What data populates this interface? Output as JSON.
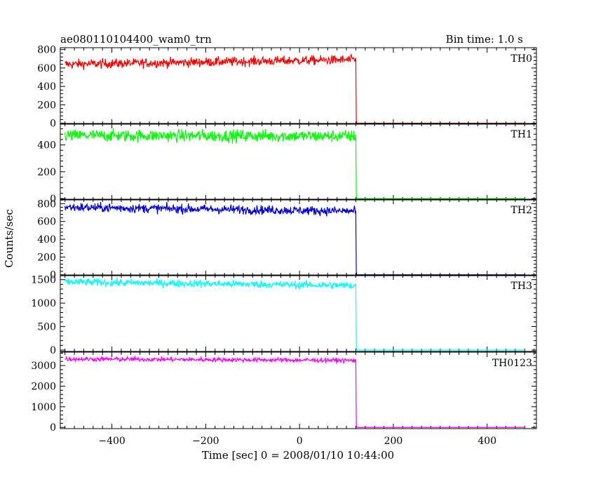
{
  "chart_data": {
    "type": "line",
    "title": "ae080110104400_wam0_trn",
    "subtitle": "Bin time: 1.0 s",
    "xlabel": "Time [sec] 0 = 2008/01/10 10:44:00",
    "ylabel": "Counts/sec",
    "xlim": [
      -510,
      505
    ],
    "x_ticks": [
      -400,
      -200,
      0,
      200,
      400
    ],
    "x_tick_labels": [
      "−400",
      "−200",
      "0",
      "200",
      "400"
    ],
    "grid": false,
    "step_time": 120,
    "x_start": -500,
    "x_end": 480,
    "panels": [
      {
        "name": "TH0",
        "color": "#ff0000",
        "ylim": [
          -10,
          820
        ],
        "yticks": [
          0,
          200,
          400,
          600,
          800
        ],
        "ytick_labels": [
          "0",
          "200",
          "400",
          "600",
          "800"
        ],
        "level_start": 640,
        "level_end": 690,
        "noise": 50,
        "after": 0
      },
      {
        "name": "TH1",
        "color": "#00ff00",
        "ylim": [
          -10,
          560
        ],
        "yticks": [
          0,
          200,
          400
        ],
        "ytick_labels": [
          "0",
          "200",
          "400"
        ],
        "level_start": 470,
        "level_end": 465,
        "noise": 45,
        "after": 0
      },
      {
        "name": "TH2",
        "color": "#0000dd",
        "ylim": [
          -10,
          850
        ],
        "yticks": [
          0,
          200,
          400,
          600,
          800
        ],
        "ytick_labels": [
          "0",
          "200",
          "400",
          "600",
          "800"
        ],
        "level_start": 760,
        "level_end": 715,
        "noise": 50,
        "after": 0
      },
      {
        "name": "TH3",
        "color": "#00ffff",
        "ylim": [
          -30,
          1600
        ],
        "yticks": [
          0,
          500,
          1000,
          1500
        ],
        "ytick_labels": [
          "0",
          "500",
          "1000",
          "1500"
        ],
        "level_start": 1450,
        "level_end": 1375,
        "noise": 80,
        "after": 0
      },
      {
        "name": "TH0123",
        "color": "#ff00ff",
        "ylim": [
          -60,
          3650
        ],
        "yticks": [
          0,
          1000,
          2000,
          3000
        ],
        "ytick_labels": [
          "0",
          "1000",
          "2000",
          "3000"
        ],
        "level_start": 3320,
        "level_end": 3250,
        "noise": 110,
        "after": 0
      }
    ]
  }
}
